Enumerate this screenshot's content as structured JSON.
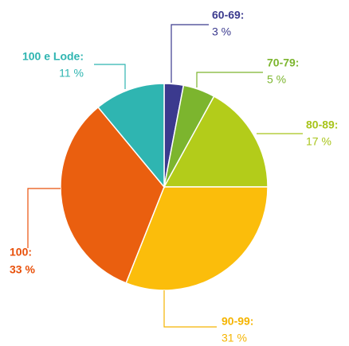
{
  "chart_data": {
    "type": "pie",
    "categories": [
      "60-69:",
      "70-79:",
      "80-89:",
      "90-99:",
      "100:",
      "100 e Lode:"
    ],
    "values": [
      3,
      5,
      17,
      31,
      33,
      11
    ],
    "value_labels": [
      "3 %",
      "5 %",
      "17 %",
      "31 %",
      "33 %",
      "11 %"
    ],
    "colors": [
      "#3b3a8e",
      "#7cb52e",
      "#b3cc1a",
      "#fbbd0b",
      "#ea5f0f",
      "#2fb5b1"
    ],
    "label_colors": [
      "#3b3a8e",
      "#7cb52e",
      "#a8c41a",
      "#f5b400",
      "#e8500a",
      "#2fb5b1"
    ]
  }
}
